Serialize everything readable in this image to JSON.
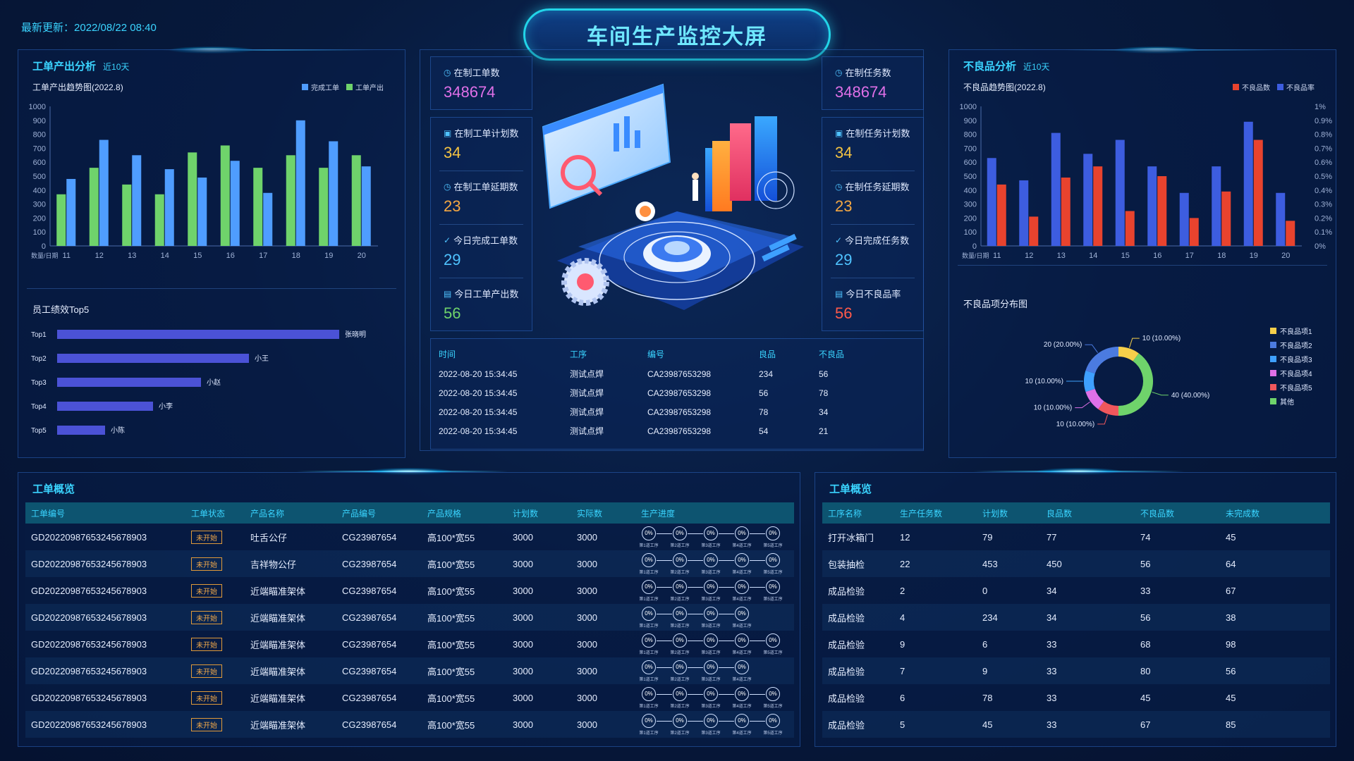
{
  "header": {
    "title": "车间生产监控大屏",
    "update_label": "最新更新：",
    "update_time": "2022/08/22 08:40"
  },
  "colors": {
    "accent": "#3ad4ff",
    "complete_order": "#4f9dff",
    "order_output": "#6fd36b",
    "defect": "#e8432e",
    "defect_rate": "#3d5de0"
  },
  "left_panel": {
    "title": "工单产出分析",
    "subtitle": "近10天",
    "performance_title": "员工绩效Top5"
  },
  "right_panel": {
    "title": "不良品分析",
    "subtitle": "近10天",
    "pie_title": "不良品项分布图"
  },
  "kpi_left": [
    {
      "label": "在制工单数",
      "value": "348674",
      "color": "#e070e8",
      "icon": "clock-icon"
    },
    {
      "label": "在制工单计划数",
      "value": "34",
      "color": "#f5c442",
      "icon": "calendar-icon"
    },
    {
      "label": "在制工单延期数",
      "value": "23",
      "color": "#f5a742",
      "icon": "clock-icon"
    },
    {
      "label": "今日完成工单数",
      "value": "29",
      "color": "#4fc3ff",
      "icon": "check-icon"
    },
    {
      "label": "今日工单产出数",
      "value": "56",
      "color": "#6fd36b",
      "icon": "output-icon"
    }
  ],
  "kpi_right": [
    {
      "label": "在制任务数",
      "value": "348674",
      "color": "#e070e8",
      "icon": "clock-icon"
    },
    {
      "label": "在制任务计划数",
      "value": "34",
      "color": "#f5c442",
      "icon": "calendar-icon"
    },
    {
      "label": "在制任务延期数",
      "value": "23",
      "color": "#f5a742",
      "icon": "clock-icon"
    },
    {
      "label": "今日完成任务数",
      "value": "29",
      "color": "#4fc3ff",
      "icon": "check-icon"
    },
    {
      "label": "今日不良品率",
      "value": "56",
      "color": "#ff5a4a",
      "icon": "rate-icon"
    }
  ],
  "center_table": {
    "headers": [
      "时间",
      "工序",
      "编号",
      "良品",
      "不良品"
    ],
    "rows": [
      [
        "2022-08-20 15:34:45",
        "测试点焊",
        "CA23987653298",
        "234",
        "56"
      ],
      [
        "2022-08-20 15:34:45",
        "测试点焊",
        "CA23987653298",
        "56",
        "78"
      ],
      [
        "2022-08-20 15:34:45",
        "测试点焊",
        "CA23987653298",
        "78",
        "34"
      ],
      [
        "2022-08-20 15:34:45",
        "测试点焊",
        "CA23987653298",
        "54",
        "21"
      ]
    ]
  },
  "order_overview": {
    "title": "工单概览",
    "headers": [
      "工单编号",
      "工单状态",
      "产品名称",
      "产品编号",
      "产品规格",
      "计划数",
      "实际数",
      "生产进度"
    ],
    "step_value": "0%",
    "step_labels": [
      "第1道工序",
      "第2道工序",
      "第3道工序",
      "第4道工序",
      "第5道工序"
    ],
    "rows": [
      {
        "id": "GD20220987653245678903",
        "status": "未开始",
        "name": "吐舌公仔",
        "code": "CG23987654",
        "spec": "高100*宽55",
        "plan": "3000",
        "actual": "3000",
        "steps": 5
      },
      {
        "id": "GD20220987653245678903",
        "status": "未开始",
        "name": "吉祥物公仔",
        "code": "CG23987654",
        "spec": "高100*宽55",
        "plan": "3000",
        "actual": "3000",
        "steps": 5
      },
      {
        "id": "GD20220987653245678903",
        "status": "未开始",
        "name": "近端瞄准架体",
        "code": "CG23987654",
        "spec": "高100*宽55",
        "plan": "3000",
        "actual": "3000",
        "steps": 5
      },
      {
        "id": "GD20220987653245678903",
        "status": "未开始",
        "name": "近端瞄准架体",
        "code": "CG23987654",
        "spec": "高100*宽55",
        "plan": "3000",
        "actual": "3000",
        "steps": 4
      },
      {
        "id": "GD20220987653245678903",
        "status": "未开始",
        "name": "近端瞄准架体",
        "code": "CG23987654",
        "spec": "高100*宽55",
        "plan": "3000",
        "actual": "3000",
        "steps": 5
      },
      {
        "id": "GD20220987653245678903",
        "status": "未开始",
        "name": "近端瞄准架体",
        "code": "CG23987654",
        "spec": "高100*宽55",
        "plan": "3000",
        "actual": "3000",
        "steps": 4
      },
      {
        "id": "GD20220987653245678903",
        "status": "未开始",
        "name": "近端瞄准架体",
        "code": "CG23987654",
        "spec": "高100*宽55",
        "plan": "3000",
        "actual": "3000",
        "steps": 5
      },
      {
        "id": "GD20220987653245678903",
        "status": "未开始",
        "name": "近端瞄准架体",
        "code": "CG23987654",
        "spec": "高100*宽55",
        "plan": "3000",
        "actual": "3000",
        "steps": 5
      }
    ]
  },
  "process_overview": {
    "title": "工单概览",
    "headers": [
      "工序名称",
      "生产任务数",
      "计划数",
      "良品数",
      "不良品数",
      "未完成数"
    ],
    "rows": [
      [
        "打开冰箱门",
        "12",
        "79",
        "77",
        "74",
        "45"
      ],
      [
        "包装抽检",
        "22",
        "453",
        "450",
        "56",
        "64"
      ],
      [
        "成品检验",
        "2",
        "0",
        "34",
        "33",
        "67"
      ],
      [
        "成品检验",
        "4",
        "234",
        "34",
        "56",
        "38"
      ],
      [
        "成品检验",
        "9",
        "6",
        "33",
        "68",
        "98"
      ],
      [
        "成品检验",
        "7",
        "9",
        "33",
        "80",
        "56"
      ],
      [
        "成品检验",
        "6",
        "78",
        "33",
        "45",
        "45"
      ],
      [
        "成品检验",
        "5",
        "45",
        "33",
        "67",
        "85"
      ]
    ]
  },
  "chart_data": [
    {
      "type": "bar",
      "title": "工单产出趋势图(2022.8)",
      "xlabel": "数量/日期",
      "categories": [
        "11",
        "12",
        "13",
        "14",
        "15",
        "16",
        "17",
        "18",
        "19",
        "20"
      ],
      "ylim": [
        0,
        1000
      ],
      "yticks": [
        "0",
        "100",
        "200",
        "300",
        "400",
        "500",
        "600",
        "700",
        "800",
        "900",
        "1000"
      ],
      "series": [
        {
          "name": "完成工单",
          "color": "#4f9dff",
          "values": [
            480,
            760,
            650,
            550,
            490,
            610,
            380,
            900,
            750,
            570
          ]
        },
        {
          "name": "工单产出",
          "color": "#6fd36b",
          "values": [
            370,
            560,
            440,
            370,
            670,
            720,
            560,
            650,
            560,
            650
          ]
        }
      ],
      "legend": "top-right"
    },
    {
      "type": "bar",
      "title": "员工绩效Top5",
      "orientation": "horizontal",
      "categories": [
        "Top1",
        "Top2",
        "Top3",
        "Top4",
        "Top5"
      ],
      "labels": [
        "张晓明",
        "小王",
        "小赵",
        "小李",
        "小陈"
      ],
      "values": [
        100,
        68,
        51,
        34,
        17
      ]
    },
    {
      "type": "bar",
      "title": "不良品趋势图(2022.8)",
      "xlabel": "数量/日期",
      "categories": [
        "11",
        "12",
        "13",
        "14",
        "15",
        "16",
        "17",
        "18",
        "19",
        "20"
      ],
      "ylim": [
        0,
        1000
      ],
      "yticks": [
        "0",
        "100",
        "200",
        "300",
        "400",
        "500",
        "600",
        "700",
        "800",
        "900",
        "1000"
      ],
      "y2ticks": [
        "0%",
        "0.1%",
        "0.2%",
        "0.3%",
        "0.4%",
        "0.5%",
        "0.6%",
        "0.7%",
        "0.8%",
        "0.9%",
        "1%"
      ],
      "series": [
        {
          "name": "不良品数",
          "color": "#e8432e",
          "values": [
            440,
            210,
            490,
            570,
            250,
            500,
            200,
            390,
            760,
            180
          ]
        },
        {
          "name": "不良品率",
          "color": "#3d5de0",
          "values": [
            630,
            470,
            810,
            660,
            760,
            570,
            380,
            570,
            890,
            380
          ]
        }
      ],
      "legend": "top-right"
    },
    {
      "type": "pie",
      "title": "不良品项分布图",
      "slices": [
        {
          "name": "不良品项1",
          "value": 10,
          "label": "10 (10.00%)",
          "color": "#f6cf4a"
        },
        {
          "name": "其他",
          "value": 40,
          "label": "40 (40.00%)",
          "color": "#6fd36b"
        },
        {
          "name": "不良品项5",
          "value": 10,
          "label": "10 (10.00%)",
          "color": "#f0575c"
        },
        {
          "name": "不良品项4",
          "value": 10,
          "label": "10 (10.00%)",
          "color": "#e070e8"
        },
        {
          "name": "不良品项3",
          "value": 10,
          "label": "10 (10.00%)",
          "color": "#3ea0ff"
        },
        {
          "name": "不良品项2",
          "value": 20,
          "label": "20 (20.00%)",
          "color": "#4b7be0"
        }
      ],
      "legend_items": [
        "不良品项1",
        "不良品项2",
        "不良品项3",
        "不良品项4",
        "不良品项5",
        "其他"
      ],
      "legend_colors": [
        "#f6cf4a",
        "#4b7be0",
        "#3ea0ff",
        "#e070e8",
        "#f0575c",
        "#6fd36b"
      ],
      "legend": "right"
    }
  ]
}
